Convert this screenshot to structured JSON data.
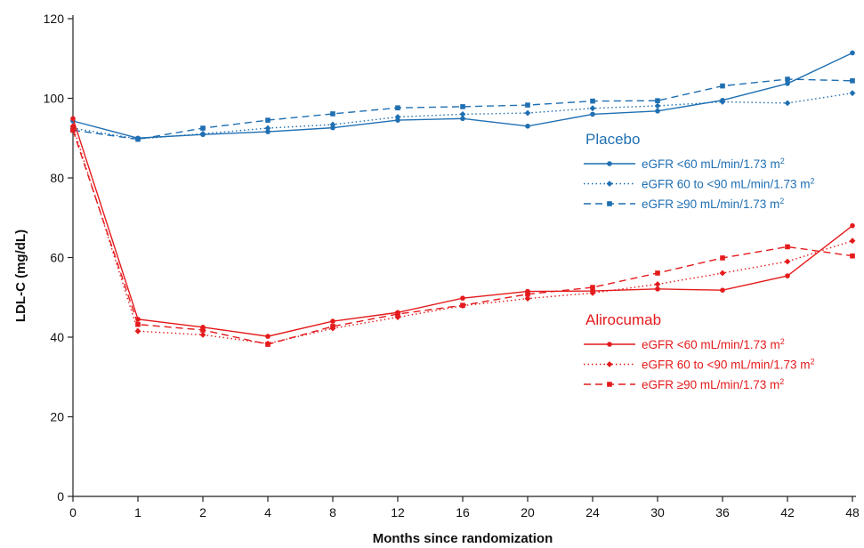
{
  "chart_data": {
    "type": "line",
    "title": "",
    "xlabel": "Months since randomization",
    "ylabel": "LDL-C (mg/dL)",
    "categories": [
      "0",
      "1",
      "2",
      "4",
      "8",
      "12",
      "16",
      "20",
      "24",
      "30",
      "36",
      "42",
      "48"
    ],
    "ylim": [
      0,
      120
    ],
    "yticks": [
      "0",
      "20",
      "40",
      "60",
      "80",
      "100",
      "120"
    ],
    "grid": false,
    "legend_placement": "right",
    "groups": [
      {
        "name": "Placebo",
        "color": "#1f6fb2",
        "series": [
          {
            "name": "eGFR <60 mL/min/1.73 m",
            "sup": "2",
            "dash": "solid",
            "marker": "circle",
            "values": [
              94.3,
              90.0,
              90.9,
              91.6,
              92.6,
              94.5,
              94.9,
              93.0,
              96.0,
              96.8,
              99.5,
              103.7,
              111.4
            ]
          },
          {
            "name": "eGFR 60 to <90 mL/min/1.73 m",
            "sup": "2",
            "dash": "dotted",
            "marker": "diamond",
            "values": [
              92.5,
              89.8,
              91.1,
              92.5,
              93.4,
              95.3,
              96.0,
              96.3,
              97.5,
              98.1,
              99.1,
              98.8,
              101.3
            ]
          },
          {
            "name": "eGFR ≥90 mL/min/1.73 m",
            "sup": "2",
            "dash": "dashed",
            "marker": "square",
            "values": [
              92.0,
              89.7,
              92.5,
              94.5,
              96.1,
              97.6,
              97.9,
              98.3,
              99.3,
              99.4,
              103.1,
              104.8,
              104.4
            ]
          }
        ]
      },
      {
        "name": "Alirocumab",
        "color": "#e41a1c",
        "series": [
          {
            "name": "eGFR <60 mL/min/1.73 m",
            "sup": "2",
            "dash": "solid",
            "marker": "circle",
            "values": [
              94.9,
              44.5,
              42.5,
              40.2,
              44.0,
              46.2,
              49.8,
              51.5,
              51.6,
              52.1,
              51.8,
              55.4,
              68.0
            ]
          },
          {
            "name": "eGFR 60 to <90 mL/min/1.73 m",
            "sup": "2",
            "dash": "dotted",
            "marker": "diamond",
            "values": [
              93.0,
              41.5,
              40.6,
              38.4,
              42.2,
              45.0,
              47.9,
              49.7,
              51.1,
              53.3,
              56.1,
              59.0,
              64.2
            ]
          },
          {
            "name": "eGFR ≥90 mL/min/1.73 m",
            "sup": "2",
            "dash": "dashed",
            "marker": "square",
            "values": [
              92.0,
              43.2,
              41.8,
              38.2,
              42.7,
              45.8,
              48.0,
              50.8,
              52.5,
              56.1,
              59.9,
              62.7,
              60.4
            ]
          }
        ]
      }
    ]
  }
}
